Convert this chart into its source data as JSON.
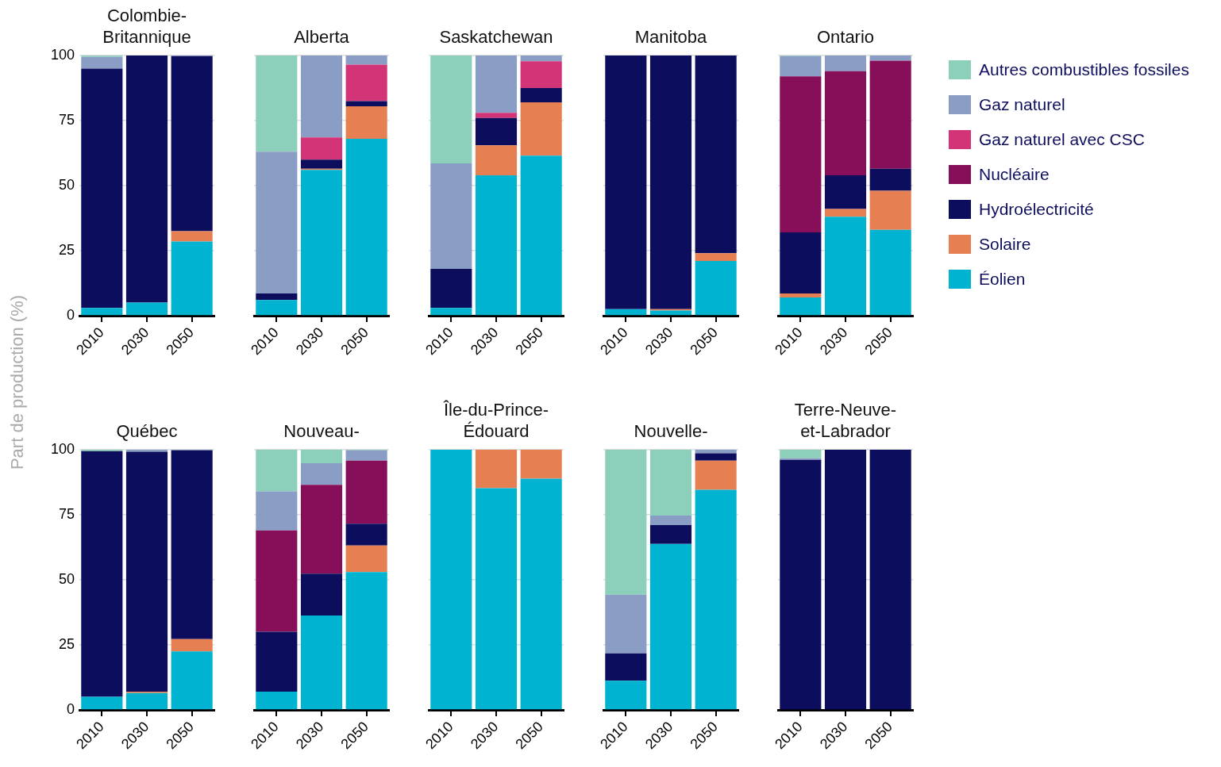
{
  "chart_data": [
    {
      "type": "bar",
      "title": "Colombie-\nBritannique",
      "ylabel": "Part de production (%)",
      "categories": [
        "2010",
        "2030",
        "2050"
      ],
      "stacked": true,
      "ylim": [
        0,
        100
      ],
      "yticks": [
        0,
        25,
        50,
        75,
        100
      ],
      "grid": "y",
      "legend": "right",
      "series": [
        {
          "name": "Éolien",
          "color": "#00b3d0",
          "values": [
            3,
            5,
            28.5
          ]
        },
        {
          "name": "Solaire",
          "color": "#e68053",
          "values": [
            null,
            null,
            4
          ]
        },
        {
          "name": "Hydroélectricité",
          "color": "#0d0d5e",
          "values": [
            92,
            95,
            67.3
          ]
        },
        {
          "name": "Nucléaire",
          "color": "#870f5a",
          "values": [
            null,
            null,
            null
          ]
        },
        {
          "name": "Gaz naturel avec CSC",
          "color": "#d33478",
          "values": [
            null,
            null,
            null
          ]
        },
        {
          "name": "Gaz naturel",
          "color": "#8a9dc4",
          "values": [
            4.5,
            null,
            0.2
          ]
        },
        {
          "name": "Autres combustibles fossiles",
          "color": "#8ccfba",
          "values": [
            0.5,
            null,
            null
          ]
        }
      ]
    },
    {
      "type": "bar",
      "title": "Alberta",
      "categories": [
        "2010",
        "2030",
        "2050"
      ],
      "stacked": true,
      "ylim": [
        0,
        100
      ],
      "yticks": [
        0,
        25,
        50,
        75,
        100
      ],
      "grid": "y",
      "tick_labels": "x",
      "series": [
        {
          "color": "#00b3d0",
          "values": [
            6,
            56,
            68
          ]
        },
        {
          "color": "#e68053",
          "values": [
            null,
            0.5,
            12.5
          ]
        },
        {
          "color": "#0d0d5e",
          "values": [
            2.5,
            3.5,
            2
          ]
        },
        {
          "color": "#d33478",
          "values": [
            null,
            8.5,
            14
          ]
        },
        {
          "color": "#8a9dc4",
          "values": [
            54.5,
            31.5,
            3.5
          ]
        },
        {
          "color": "#8ccfba",
          "values": [
            37,
            null,
            null
          ]
        }
      ]
    },
    {
      "type": "bar",
      "title": "Saskatchewan",
      "categories": [
        "2010",
        "2030",
        "2050"
      ],
      "stacked": true,
      "ylim": [
        0,
        100
      ],
      "yticks": [
        0,
        25,
        50,
        75,
        100
      ],
      "grid": "y",
      "tick_labels": "x",
      "series": [
        {
          "color": "#00b3d0",
          "values": [
            3,
            54,
            61.5
          ]
        },
        {
          "color": "#e68053",
          "values": [
            null,
            11.5,
            20.5
          ]
        },
        {
          "color": "#0d0d5e",
          "values": [
            15,
            10.5,
            5.5
          ]
        },
        {
          "color": "#d33478",
          "values": [
            null,
            2,
            10.3
          ]
        },
        {
          "color": "#8a9dc4",
          "values": [
            40.5,
            22,
            2.2
          ]
        },
        {
          "color": "#8ccfba",
          "values": [
            41.5,
            null,
            null
          ]
        }
      ]
    },
    {
      "type": "bar",
      "title": "Manitoba",
      "categories": [
        "2010",
        "2030",
        "2050"
      ],
      "stacked": true,
      "ylim": [
        0,
        100
      ],
      "yticks": [
        0,
        25,
        50,
        75,
        100
      ],
      "grid": "y",
      "tick_labels": "x",
      "series": [
        {
          "color": "#00b3d0",
          "values": [
            2.5,
            2,
            21
          ]
        },
        {
          "color": "#e68053",
          "values": [
            null,
            0.5,
            3
          ]
        },
        {
          "color": "#0d0d5e",
          "values": [
            97.5,
            97.5,
            76
          ]
        }
      ]
    },
    {
      "type": "bar",
      "title": "Ontario",
      "categories": [
        "2010",
        "2030",
        "2050"
      ],
      "stacked": true,
      "ylim": [
        0,
        100
      ],
      "yticks": [
        0,
        25,
        50,
        75,
        100
      ],
      "grid": "y",
      "tick_labels": "x",
      "series": [
        {
          "color": "#00b3d0",
          "values": [
            7,
            38,
            33
          ]
        },
        {
          "color": "#e68053",
          "values": [
            1.5,
            3,
            15
          ]
        },
        {
          "color": "#0d0d5e",
          "values": [
            23.5,
            13,
            8.5
          ]
        },
        {
          "color": "#870f5a",
          "values": [
            60,
            40,
            41.5
          ]
        },
        {
          "color": "#8a9dc4",
          "values": [
            7.8,
            6,
            2
          ]
        },
        {
          "color": "#8ccfba",
          "values": [
            0.2,
            null,
            null
          ]
        }
      ]
    },
    {
      "type": "bar",
      "title": "Québec",
      "categories": [
        "2010",
        "2030",
        "2050"
      ],
      "stacked": true,
      "ylim": [
        0,
        100
      ],
      "yticks": [
        0,
        25,
        50,
        75,
        100
      ],
      "grid": "y",
      "series": [
        {
          "color": "#00b3d0",
          "values": [
            5,
            6.5,
            22.5
          ]
        },
        {
          "color": "#e68053",
          "values": [
            null,
            0.5,
            4.7
          ]
        },
        {
          "color": "#0d0d5e",
          "values": [
            94.5,
            92.2,
            72.6
          ]
        },
        {
          "color": "#8a9dc4",
          "values": [
            null,
            0.8,
            0.2
          ]
        },
        {
          "color": "#8ccfba",
          "values": [
            0.5,
            null,
            null
          ]
        }
      ]
    },
    {
      "type": "bar",
      "title": "Nouveau-",
      "categories": [
        "2010",
        "2030",
        "2050"
      ],
      "stacked": true,
      "ylim": [
        0,
        100
      ],
      "yticks": [
        0,
        25,
        50,
        75,
        100
      ],
      "grid": "y",
      "tick_labels": "x",
      "series": [
        {
          "color": "#00b3d0",
          "values": [
            7,
            36.3,
            53
          ]
        },
        {
          "color": "#e68053",
          "values": [
            null,
            null,
            10.2
          ]
        },
        {
          "color": "#0d0d5e",
          "values": [
            23,
            16.1,
            8.4
          ]
        },
        {
          "color": "#870f5a",
          "values": [
            39,
            34.1,
            24.2
          ]
        },
        {
          "color": "#8a9dc4",
          "values": [
            15,
            8.3,
            4
          ]
        },
        {
          "color": "#8ccfba",
          "values": [
            16,
            5.2,
            0.2
          ]
        }
      ]
    },
    {
      "type": "bar",
      "title": "Île-du-Prince-\nÉdouard",
      "categories": [
        "2010",
        "2030",
        "2050"
      ],
      "stacked": true,
      "ylim": [
        0,
        100
      ],
      "yticks": [
        0,
        25,
        50,
        75,
        100
      ],
      "grid": "y",
      "tick_labels": "x",
      "series": [
        {
          "color": "#00b3d0",
          "values": [
            100,
            85.2,
            88.9
          ]
        },
        {
          "color": "#e68053",
          "values": [
            null,
            14.8,
            11.1
          ]
        }
      ]
    },
    {
      "type": "bar",
      "title": "Nouvelle-",
      "categories": [
        "2010",
        "2030",
        "2050"
      ],
      "stacked": true,
      "ylim": [
        0,
        100
      ],
      "yticks": [
        0,
        25,
        50,
        75,
        100
      ],
      "grid": "y",
      "tick_labels": "x",
      "series": [
        {
          "color": "#00b3d0",
          "values": [
            11.2,
            63.8,
            84.6
          ]
        },
        {
          "color": "#e68053",
          "values": [
            null,
            null,
            11.2
          ]
        },
        {
          "color": "#0d0d5e",
          "values": [
            10.5,
            7.2,
            2.8
          ]
        },
        {
          "color": "#8a9dc4",
          "values": [
            22.6,
            3.7,
            1.4
          ]
        },
        {
          "color": "#8ccfba",
          "values": [
            55.7,
            25.3,
            null
          ]
        }
      ]
    },
    {
      "type": "bar",
      "title": "Terre-Neuve-\net-Labrador",
      "categories": [
        "2010",
        "2030",
        "2050"
      ],
      "stacked": true,
      "ylim": [
        0,
        100
      ],
      "yticks": [
        0,
        25,
        50,
        75,
        100
      ],
      "grid": "y",
      "tick_labels": "x",
      "series": [
        {
          "color": "#0d0d5e",
          "values": [
            96.1,
            100,
            100
          ]
        },
        {
          "color": "#8a9dc4",
          "values": [
            0.6,
            null,
            null
          ]
        },
        {
          "color": "#8ccfba",
          "values": [
            3.3,
            null,
            null
          ]
        }
      ]
    }
  ]
}
